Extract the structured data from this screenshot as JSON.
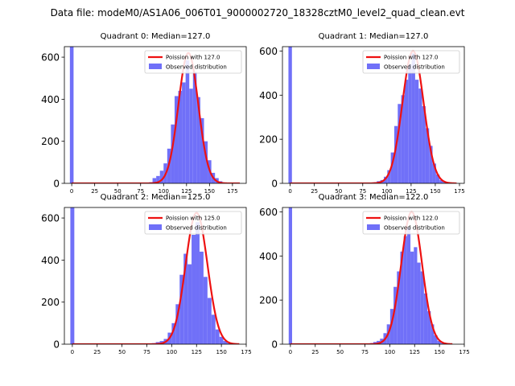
{
  "figure_title": "Data file: modeM0/AS1A06_006T01_9000002720_18328cztM0_level2_quad_clean.evt",
  "colors": {
    "hist": "#7070f8",
    "curve": "#ee1111",
    "axis": "#000000",
    "legend_edge": "#cccccc"
  },
  "chart_data": [
    {
      "type": "bar",
      "title": "Quadrant 0: Median=127.0",
      "xlim": [
        -8,
        190
      ],
      "ylim": [
        0,
        650
      ],
      "xticks": [
        0,
        25,
        50,
        75,
        100,
        125,
        150,
        175
      ],
      "yticks": [
        0,
        200,
        400,
        600
      ],
      "bin_width": 4,
      "zero_bin": {
        "x": 0,
        "value": 650
      },
      "bins_x": [
        84,
        88,
        92,
        96,
        100,
        104,
        108,
        112,
        116,
        120,
        124,
        128,
        132,
        136,
        140,
        144,
        148,
        152,
        156,
        160,
        164
      ],
      "bins_values": [
        5,
        25,
        35,
        60,
        95,
        165,
        280,
        415,
        440,
        480,
        585,
        450,
        530,
        410,
        310,
        200,
        110,
        50,
        25,
        10,
        3
      ],
      "curve_label": "Poission with 127.0",
      "hist_label": "Observed distribution",
      "mu": 127.0,
      "sigma": 10.8,
      "peak": 620,
      "curve_range": [
        0,
        183
      ]
    },
    {
      "type": "bar",
      "title": "Quadrant 1: Median=127.0",
      "xlim": [
        -8,
        180
      ],
      "ylim": [
        0,
        620
      ],
      "xticks": [
        0,
        25,
        50,
        75,
        100,
        125,
        150,
        175
      ],
      "yticks": [
        0,
        200,
        400,
        600
      ],
      "bin_width": 3.6,
      "zero_bin": {
        "x": 0,
        "value": 620
      },
      "bins_x": [
        86,
        89.6,
        93.2,
        96.8,
        100.4,
        104,
        107.6,
        111.2,
        114.8,
        118.4,
        122,
        125.6,
        129.2,
        132.8,
        136.4,
        140,
        143.6,
        147.2,
        150.8,
        154.4,
        158
      ],
      "bins_values": [
        5,
        10,
        15,
        30,
        60,
        140,
        260,
        360,
        400,
        470,
        540,
        590,
        470,
        430,
        350,
        250,
        170,
        90,
        40,
        15,
        5
      ],
      "curve_label": "Poission with 127.0",
      "hist_label": "Observed distribution",
      "mu": 127.0,
      "sigma": 11.0,
      "peak": 600,
      "curve_range": [
        0,
        172
      ]
    },
    {
      "type": "bar",
      "title": "Quadrant 2: Median=125.0",
      "xlim": [
        -8,
        175
      ],
      "ylim": [
        0,
        650
      ],
      "xticks": [
        0,
        25,
        50,
        75,
        100,
        125,
        150,
        175
      ],
      "yticks": [
        0,
        200,
        400,
        600
      ],
      "bin_width": 4,
      "zero_bin": {
        "x": 0,
        "value": 650
      },
      "bins_x": [
        80,
        84,
        88,
        92,
        96,
        100,
        104,
        108,
        112,
        116,
        120,
        124,
        128,
        132,
        136,
        140,
        144,
        148,
        152,
        156
      ],
      "bins_values": [
        5,
        10,
        15,
        25,
        55,
        100,
        190,
        330,
        430,
        380,
        520,
        580,
        440,
        320,
        220,
        140,
        70,
        35,
        15,
        5
      ],
      "curve_label": "Poission with 125.0",
      "hist_label": "Observed distribution",
      "mu": 125.0,
      "sigma": 11.0,
      "peak": 625,
      "curve_range": [
        0,
        168
      ]
    },
    {
      "type": "bar",
      "title": "Quadrant 3: Median=122.0",
      "xlim": [
        -8,
        175
      ],
      "ylim": [
        0,
        620
      ],
      "xticks": [
        0,
        25,
        50,
        75,
        100,
        125,
        150,
        175
      ],
      "yticks": [
        0,
        200,
        400,
        600
      ],
      "bin_width": 3.4,
      "zero_bin": {
        "x": 0,
        "value": 620
      },
      "bins_x": [
        80,
        83.4,
        86.8,
        90.2,
        93.6,
        97,
        100.4,
        103.8,
        107.2,
        110.6,
        114,
        117.4,
        120.8,
        124.2,
        127.6,
        131,
        134.4,
        137.8,
        141.2,
        144.6,
        148,
        151.4
      ],
      "bins_values": [
        5,
        10,
        15,
        25,
        50,
        90,
        160,
        260,
        330,
        420,
        490,
        530,
        420,
        440,
        370,
        330,
        230,
        150,
        90,
        40,
        15,
        5
      ],
      "curve_label": "Poission with 122.0",
      "hist_label": "Observed distribution",
      "mu": 122.0,
      "sigma": 10.5,
      "peak": 600,
      "curve_range": [
        0,
        163
      ]
    }
  ]
}
